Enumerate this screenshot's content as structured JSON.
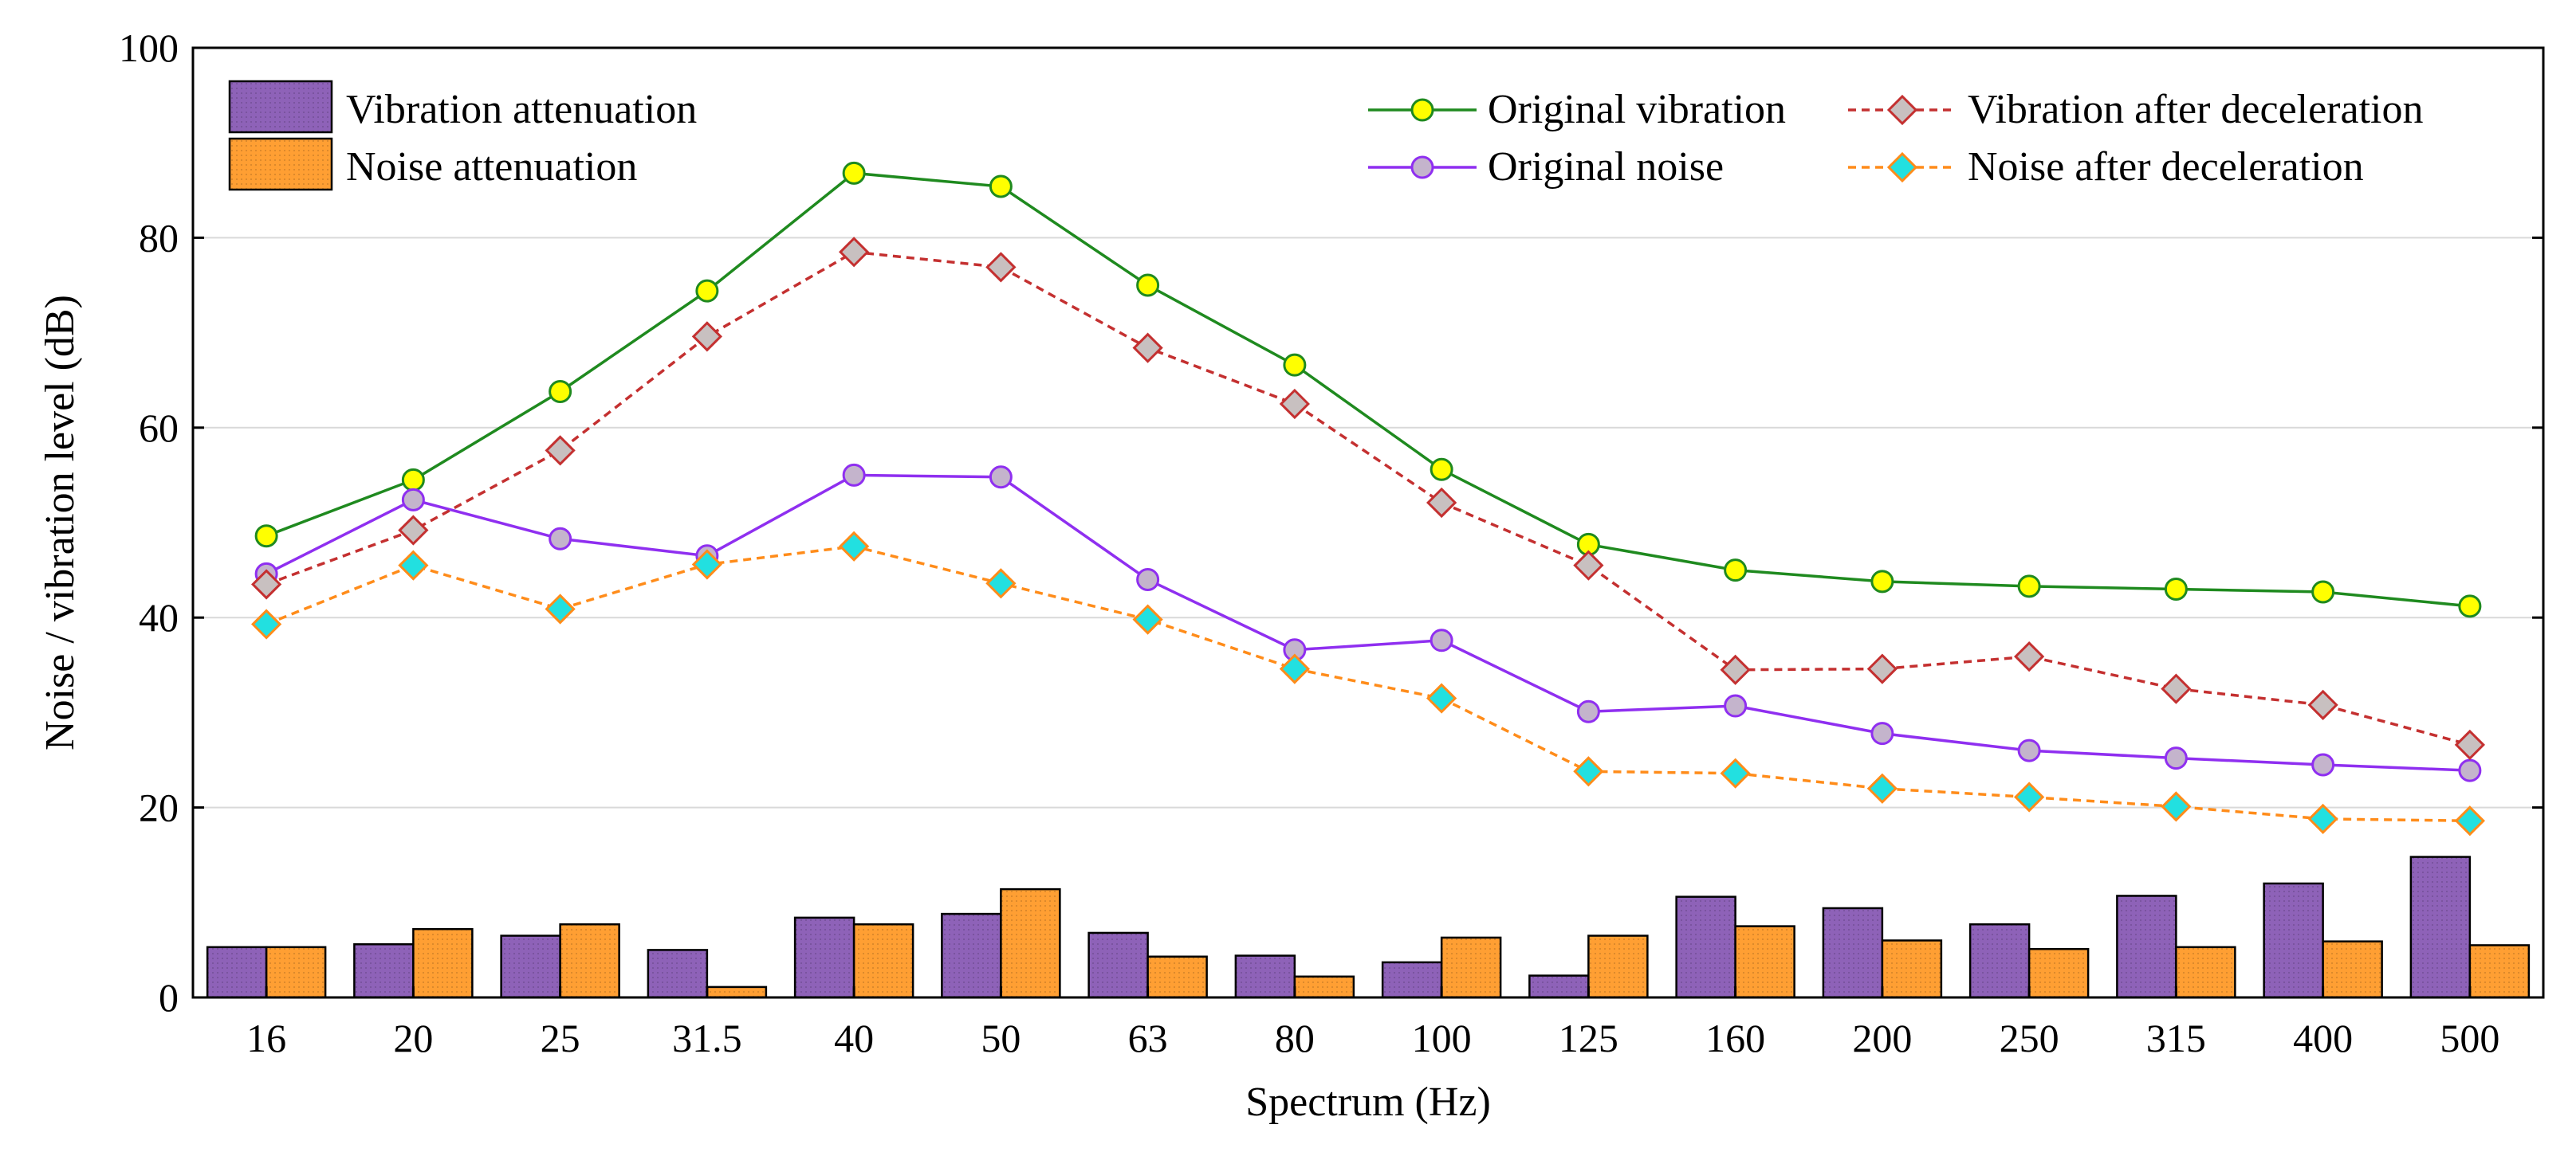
{
  "chart_data": {
    "type": "bar+line",
    "xlabel": "Spectrum (Hz)",
    "ylabel": "Noise / vibration level (dB)",
    "ylim": [
      0,
      100
    ],
    "yticks": [
      0,
      20,
      40,
      60,
      80,
      100
    ],
    "grid": "horizontal",
    "categories": [
      "16",
      "20",
      "25",
      "31.5",
      "40",
      "50",
      "63",
      "80",
      "100",
      "125",
      "160",
      "200",
      "250",
      "315",
      "400",
      "500"
    ],
    "bar_series": [
      {
        "name": "Vibration attenuation",
        "color": "#8e62b8",
        "values": [
          5.3,
          5.6,
          6.5,
          5.0,
          8.4,
          8.8,
          6.8,
          4.4,
          3.7,
          2.3,
          10.6,
          9.4,
          7.7,
          10.7,
          12.0,
          14.8
        ]
      },
      {
        "name": "Noise attenuation",
        "color": "#ff9f33",
        "values": [
          5.3,
          7.2,
          7.7,
          1.1,
          7.7,
          11.4,
          4.3,
          2.2,
          6.3,
          6.5,
          7.5,
          6.0,
          5.1,
          5.3,
          5.9,
          5.5
        ]
      }
    ],
    "line_series": [
      {
        "name": "Original vibration",
        "color": "#1f8a1f",
        "marker": "circle",
        "marker_fill": "#ffff00",
        "dash": "solid",
        "values": [
          48.6,
          54.5,
          63.8,
          74.4,
          86.8,
          85.4,
          75.0,
          66.6,
          55.6,
          47.7,
          45.0,
          43.8,
          43.3,
          43.0,
          42.7,
          41.2
        ]
      },
      {
        "name": "Original noise",
        "color": "#8f2ff0",
        "marker": "circle",
        "marker_fill": "#c4b4cc",
        "dash": "solid",
        "values": [
          44.6,
          52.4,
          48.3,
          46.5,
          55.0,
          54.8,
          44.0,
          36.6,
          37.6,
          30.1,
          30.7,
          27.8,
          26.0,
          25.2,
          24.5,
          23.9
        ]
      },
      {
        "name": "Vibration after deceleration",
        "color": "#c43030",
        "marker": "diamond",
        "marker_fill": "#c8c0c0",
        "dash": "dashed",
        "values": [
          43.5,
          49.2,
          57.6,
          69.6,
          78.5,
          76.9,
          68.4,
          62.5,
          52.1,
          45.5,
          34.5,
          34.6,
          35.9,
          32.5,
          30.8,
          26.6
        ]
      },
      {
        "name": "Noise after deceleration",
        "color": "#ff8c1a",
        "marker": "diamond",
        "marker_fill": "#22e0e0",
        "dash": "dashed",
        "values": [
          39.3,
          45.5,
          40.9,
          45.6,
          47.5,
          43.6,
          39.8,
          34.6,
          31.5,
          23.8,
          23.6,
          22.0,
          21.1,
          20.1,
          18.8,
          18.6
        ]
      }
    ],
    "legend": {
      "placement": "top",
      "bar_entries": [
        "Vibration attenuation",
        "Noise attenuation"
      ],
      "line_entries": [
        "Original vibration",
        "Vibration after deceleration",
        "Original noise",
        "Noise after deceleration"
      ]
    }
  }
}
